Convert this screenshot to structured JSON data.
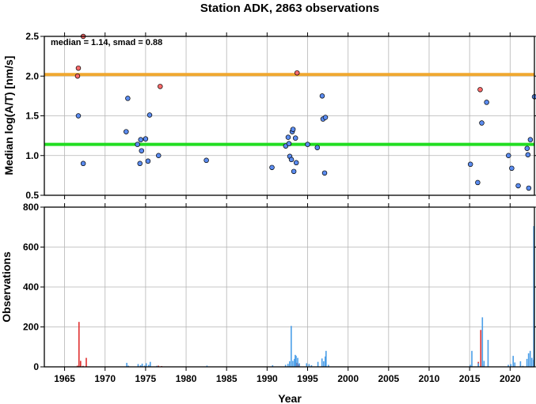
{
  "chart_data": [
    {
      "type": "scatter",
      "title": "Station ADK, 2863 observations",
      "ylabel": "Median log(A/T) [nm/s]",
      "annotation": "median = 1.14, smad = 0.88",
      "xlim": [
        1962.5,
        2023.0
      ],
      "ylim": [
        0.5,
        2.5
      ],
      "yticks": [
        "0.5",
        "1.0",
        "1.5",
        "2.0",
        "2.5"
      ],
      "grid": true,
      "reference_lines": [
        {
          "y": 1.14,
          "color": "#22dd22"
        },
        {
          "y": 2.02,
          "color": "#f0a830"
        }
      ],
      "series": [
        {
          "color": "#5b8cf0",
          "points": [
            [
              1966.7,
              1.5
            ],
            [
              1967.3,
              0.9
            ],
            [
              1972.6,
              1.3
            ],
            [
              1972.8,
              1.72
            ],
            [
              1974.0,
              1.14
            ],
            [
              1974.3,
              0.9
            ],
            [
              1974.4,
              1.2
            ],
            [
              1974.5,
              1.06
            ],
            [
              1975.0,
              1.21
            ],
            [
              1975.3,
              0.93
            ],
            [
              1975.5,
              1.51
            ],
            [
              1976.6,
              1.0
            ],
            [
              1982.5,
              0.94
            ],
            [
              1990.6,
              0.85
            ],
            [
              1992.3,
              1.12
            ],
            [
              1992.6,
              1.23
            ],
            [
              1992.7,
              1.15
            ],
            [
              1992.8,
              0.99
            ],
            [
              1993.0,
              0.95
            ],
            [
              1993.1,
              1.3
            ],
            [
              1993.2,
              1.33
            ],
            [
              1993.3,
              0.8
            ],
            [
              1993.5,
              1.22
            ],
            [
              1993.6,
              0.91
            ],
            [
              1995.0,
              1.14
            ],
            [
              1996.2,
              1.1
            ],
            [
              1996.8,
              1.75
            ],
            [
              1996.9,
              1.46
            ],
            [
              1997.1,
              0.78
            ],
            [
              1997.2,
              1.48
            ],
            [
              2015.1,
              0.89
            ],
            [
              2016.0,
              0.66
            ],
            [
              2016.5,
              1.41
            ],
            [
              2017.1,
              1.67
            ],
            [
              2019.8,
              1.0
            ],
            [
              2020.2,
              0.84
            ],
            [
              2021.0,
              0.62
            ],
            [
              2022.1,
              1.09
            ],
            [
              2022.2,
              1.01
            ],
            [
              2022.3,
              0.59
            ],
            [
              2022.5,
              1.2
            ],
            [
              2023.0,
              1.74
            ]
          ]
        },
        {
          "color": "#ff6b6b",
          "points": [
            [
              1966.6,
              2.0
            ],
            [
              1966.7,
              2.1
            ],
            [
              1967.3,
              2.5
            ],
            [
              1976.8,
              1.87
            ],
            [
              1993.7,
              2.04
            ],
            [
              2016.3,
              1.83
            ]
          ]
        }
      ]
    },
    {
      "type": "bar",
      "xlabel": "Year",
      "ylabel": "Observations",
      "xlim": [
        1962.5,
        2023.0
      ],
      "ylim": [
        0,
        800
      ],
      "xticks": [
        "1965",
        "1970",
        "1975",
        "1980",
        "1985",
        "1990",
        "1995",
        "2000",
        "2005",
        "2010",
        "2015",
        "2020"
      ],
      "yticks": [
        "0",
        "200",
        "400",
        "600",
        "800"
      ],
      "grid": true,
      "series": [
        {
          "color": "#e03030",
          "bars": [
            [
              1966.5,
              6
            ],
            [
              1966.7,
              225
            ],
            [
              1966.9,
              30
            ],
            [
              1967.2,
              5
            ],
            [
              1967.6,
              45
            ],
            [
              1976.5,
              6
            ],
            [
              1976.9,
              4
            ],
            [
              1993.6,
              20
            ],
            [
              1993.8,
              12
            ],
            [
              2016.0,
              25
            ],
            [
              2016.3,
              185
            ],
            [
              2016.5,
              12
            ]
          ]
        },
        {
          "color": "#4a9ee8",
          "bars": [
            [
              1972.6,
              20
            ],
            [
              1972.8,
              6
            ],
            [
              1974.0,
              14
            ],
            [
              1974.3,
              8
            ],
            [
              1974.5,
              16
            ],
            [
              1974.8,
              6
            ],
            [
              1975.0,
              18
            ],
            [
              1975.3,
              10
            ],
            [
              1975.5,
              25
            ],
            [
              1976.3,
              5
            ],
            [
              1982.5,
              6
            ],
            [
              1990.6,
              8
            ],
            [
              1992.2,
              10
            ],
            [
              1992.5,
              15
            ],
            [
              1992.7,
              28
            ],
            [
              1992.9,
              205
            ],
            [
              1993.1,
              30
            ],
            [
              1993.3,
              40
            ],
            [
              1993.4,
              60
            ],
            [
              1993.5,
              55
            ],
            [
              1993.7,
              45
            ],
            [
              1993.9,
              18
            ],
            [
              1994.8,
              18
            ],
            [
              1995.1,
              14
            ],
            [
              1995.4,
              8
            ],
            [
              1996.2,
              25
            ],
            [
              1996.7,
              42
            ],
            [
              1996.9,
              28
            ],
            [
              1997.1,
              52
            ],
            [
              1997.2,
              80
            ],
            [
              1997.5,
              10
            ],
            [
              2015.0,
              10
            ],
            [
              2015.2,
              80
            ],
            [
              2016.0,
              18
            ],
            [
              2016.5,
              248
            ],
            [
              2016.7,
              30
            ],
            [
              2017.2,
              135
            ],
            [
              2019.7,
              10
            ],
            [
              2020.0,
              14
            ],
            [
              2020.3,
              55
            ],
            [
              2020.5,
              22
            ],
            [
              2021.2,
              28
            ],
            [
              2021.5,
              5
            ],
            [
              2022.0,
              40
            ],
            [
              2022.2,
              68
            ],
            [
              2022.4,
              80
            ],
            [
              2022.6,
              45
            ],
            [
              2022.8,
              35
            ],
            [
              2023.0,
              705
            ]
          ]
        }
      ]
    }
  ]
}
